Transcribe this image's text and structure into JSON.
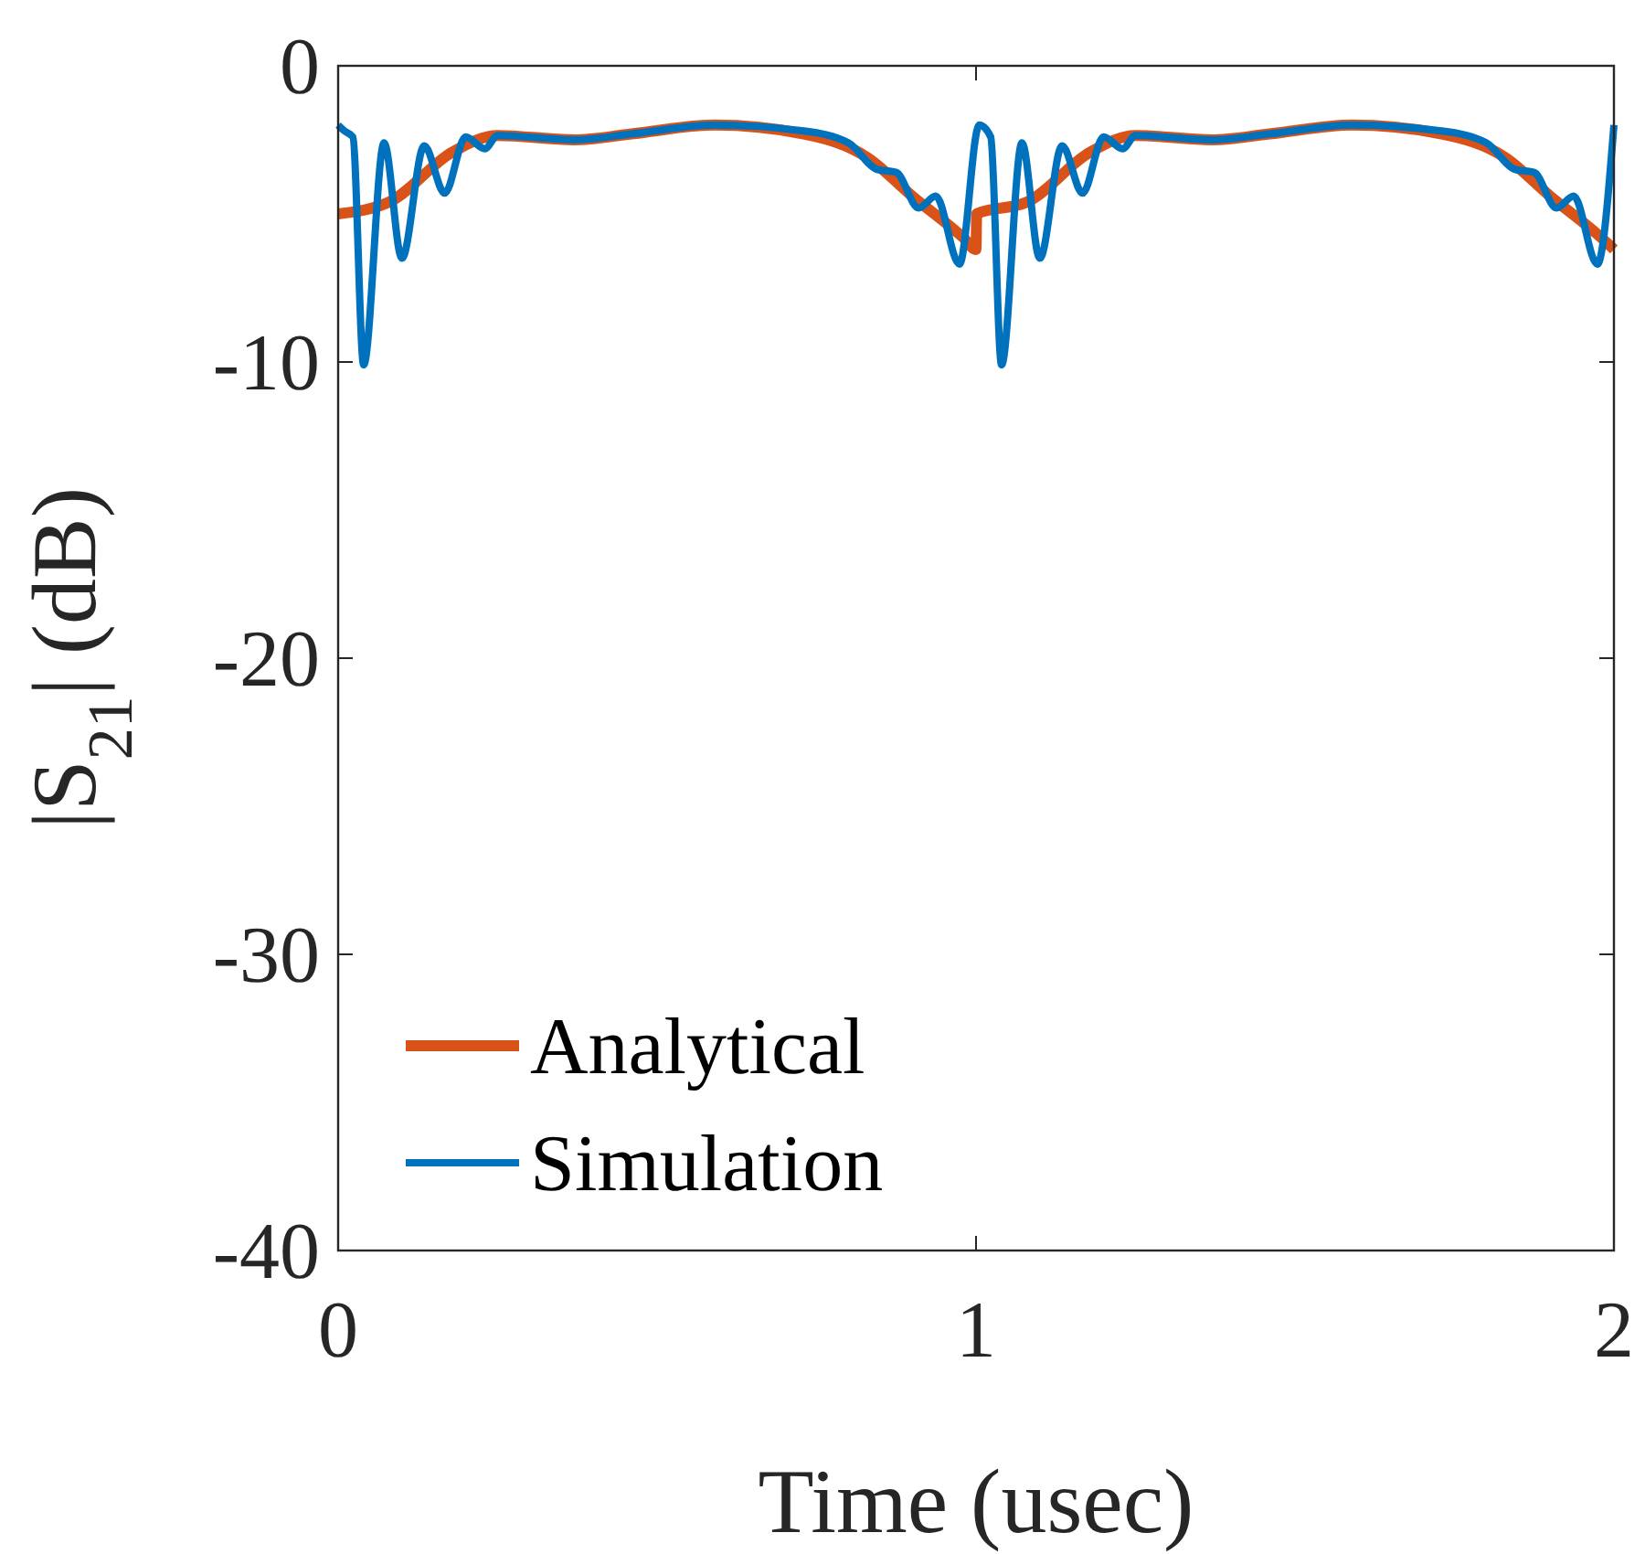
{
  "chart_data": {
    "type": "line",
    "xlabel": "Time (usec)",
    "ylabel": "|S$_{21}$| (dB)",
    "xlim": [
      0,
      2
    ],
    "xticks": [
      0,
      1,
      2
    ],
    "ylim": [
      -40,
      0
    ],
    "yticks": [
      -40,
      -30,
      -20,
      -10,
      0
    ],
    "grid": false,
    "legend": "bottom left",
    "marker": "none",
    "line_style": "solid",
    "series": [
      {
        "name": "Analytical",
        "color": "#d95319",
        "x": [
          0,
          0.08,
          0.18,
          0.25,
          0.37,
          0.46,
          0.59,
          0.73,
          0.83,
          0.9,
          0.98,
          1.0,
          1.001,
          1.08,
          1.18,
          1.25,
          1.37,
          1.46,
          1.59,
          1.73,
          1.83,
          1.9,
          1.98,
          2.0
        ],
        "values": [
          -5.0,
          -4.6,
          -2.9,
          -2.35,
          -2.5,
          -2.3,
          -2.0,
          -2.3,
          -3.1,
          -4.4,
          -5.8,
          -6.2,
          -5.0,
          -4.6,
          -2.9,
          -2.35,
          -2.5,
          -2.3,
          -2.0,
          -2.3,
          -3.1,
          -4.4,
          -5.8,
          -6.2
        ]
      },
      {
        "name": "Simulation",
        "color": "#0072bd",
        "x": [
          0,
          0.01,
          0.023,
          0.04,
          0.072,
          0.1,
          0.135,
          0.167,
          0.2,
          0.23,
          0.25,
          0.37,
          0.46,
          0.59,
          0.73,
          0.8,
          0.845,
          0.875,
          0.91,
          0.937,
          0.974,
          1.005,
          1.023,
          1.04,
          1.072,
          1.1,
          1.135,
          1.167,
          1.2,
          1.23,
          1.25,
          1.37,
          1.46,
          1.59,
          1.73,
          1.8,
          1.845,
          1.875,
          1.91,
          1.937,
          1.974,
          2.0
        ],
        "values": [
          -2.0,
          -2.2,
          -2.4,
          -10.1,
          -2.6,
          -6.5,
          -2.7,
          -4.3,
          -2.4,
          -2.8,
          -2.35,
          -2.5,
          -2.3,
          -2.0,
          -2.2,
          -2.6,
          -3.5,
          -3.6,
          -4.8,
          -4.4,
          -6.7,
          -2.0,
          -2.4,
          -10.1,
          -2.6,
          -6.5,
          -2.7,
          -4.3,
          -2.4,
          -2.8,
          -2.35,
          -2.5,
          -2.3,
          -2.0,
          -2.2,
          -2.6,
          -3.5,
          -3.6,
          -4.8,
          -4.4,
          -6.7,
          -2.0
        ]
      }
    ]
  }
}
